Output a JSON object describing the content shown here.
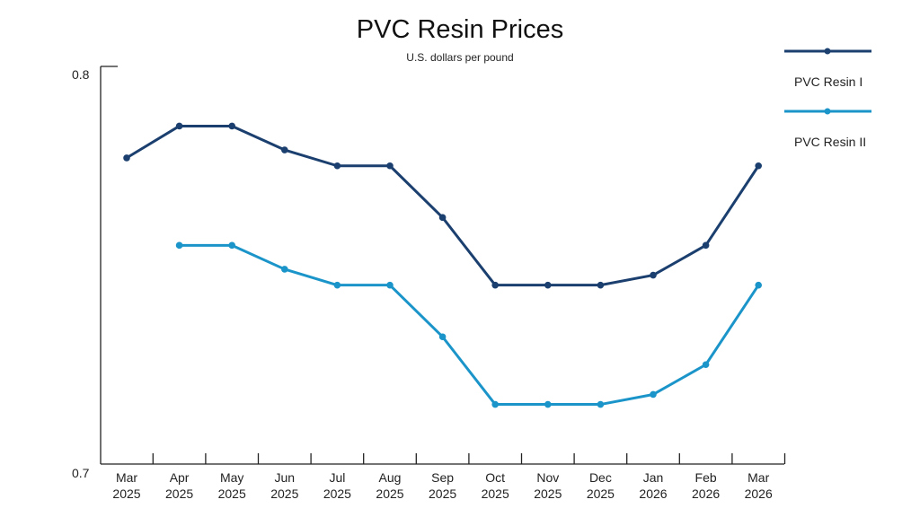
{
  "chart_data": {
    "type": "line",
    "title": "PVC Resin Prices",
    "subtitle": "U.S. dollars per pound",
    "xlabel": "",
    "ylabel": "",
    "ylim": [
      0.7,
      0.8
    ],
    "y_ticks": [
      "0.8",
      "0.7"
    ],
    "y_tick_values": [
      0.8,
      0.7
    ],
    "grid": false,
    "legend_position": "top-right",
    "categories": [
      [
        "Mar",
        "2025"
      ],
      [
        "Apr",
        "2025"
      ],
      [
        "May",
        "2025"
      ],
      [
        "Jun",
        "2025"
      ],
      [
        "Jul",
        "2025"
      ],
      [
        "Aug",
        "2025"
      ],
      [
        "Sep",
        "2025"
      ],
      [
        "Oct",
        "2025"
      ],
      [
        "Nov",
        "2025"
      ],
      [
        "Dec",
        "2025"
      ],
      [
        "Jan",
        "2026"
      ],
      [
        "Feb",
        "2026"
      ],
      [
        "Mar",
        "2026"
      ]
    ],
    "series": [
      {
        "name": "PVC Resin I",
        "color": "#1b3f6e",
        "values": [
          0.777,
          0.785,
          0.785,
          0.779,
          0.775,
          0.775,
          0.762,
          0.745,
          0.745,
          0.745,
          0.7475,
          0.755,
          0.775
        ]
      },
      {
        "name": "PVC Resin II",
        "color": "#1b95c9",
        "values": [
          null,
          0.755,
          0.755,
          0.749,
          0.745,
          0.745,
          0.732,
          0.715,
          0.715,
          0.715,
          0.7175,
          0.725,
          0.745
        ]
      }
    ]
  }
}
